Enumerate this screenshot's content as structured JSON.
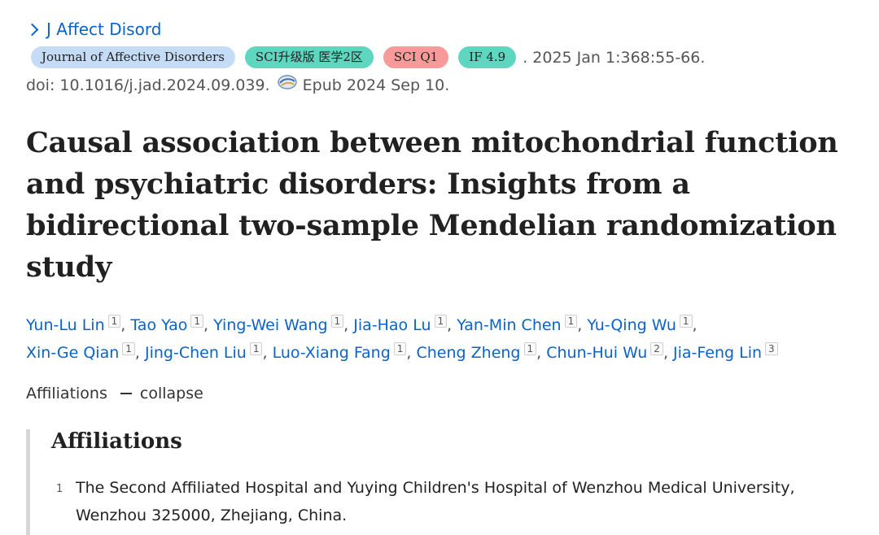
{
  "journal_link": "J Affect Disord",
  "badges": {
    "journal": "Journal of Affective Disorders",
    "sci": "SCI升级版 医学2区",
    "q1": "SCI Q1",
    "if": "IF 4.9"
  },
  "citation": ". 2025 Jan 1:368:55-66.",
  "doi": "doi: 10.1016/j.jad.2024.09.039.",
  "epub": "Epub 2024 Sep 10.",
  "title": "Causal association between mitochondrial function and psychiatric disorders: Insights from a bidirectional two-sample Mendelian randomization study",
  "authors": [
    {
      "name": "Yun-Lu Lin",
      "aff": "1"
    },
    {
      "name": "Tao Yao",
      "aff": "1"
    },
    {
      "name": "Ying-Wei Wang",
      "aff": "1"
    },
    {
      "name": "Jia-Hao Lu",
      "aff": "1"
    },
    {
      "name": "Yan-Min Chen",
      "aff": "1"
    },
    {
      "name": "Yu-Qing Wu",
      "aff": "1"
    },
    {
      "name": "Xin-Ge Qian",
      "aff": "1"
    },
    {
      "name": "Jing-Chen Liu",
      "aff": "1"
    },
    {
      "name": "Luo-Xiang Fang",
      "aff": "1"
    },
    {
      "name": "Cheng Zheng",
      "aff": "1"
    },
    {
      "name": "Chun-Hui Wu",
      "aff": "2"
    },
    {
      "name": "Jia-Feng Lin",
      "aff": "3"
    }
  ],
  "affiliations_toggle": {
    "label": "Affiliations",
    "action": "collapse"
  },
  "affiliations_section": {
    "heading": "Affiliations",
    "items": [
      {
        "num": "1",
        "text": "The Second Affiliated Hospital and Yuying Children's Hospital of Wenzhou Medical University, Wenzhou 325000, Zhejiang, China."
      }
    ]
  },
  "colors": {
    "link": "#0b63c9",
    "badge_journal": "#c5dcf6",
    "badge_teal": "#5fd6c0",
    "badge_red": "#f89a9a"
  }
}
